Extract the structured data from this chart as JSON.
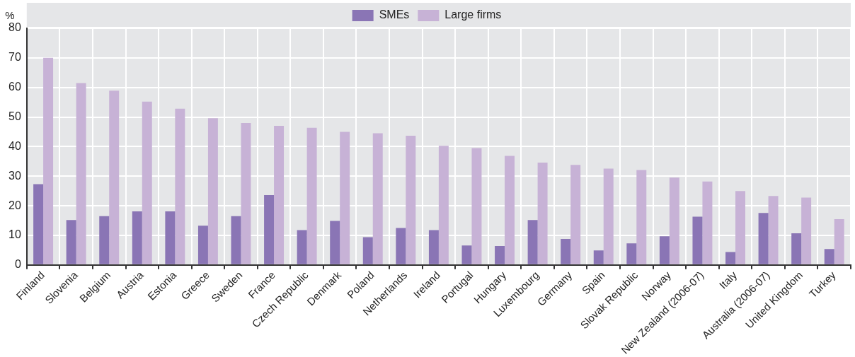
{
  "chart_data": {
    "type": "bar",
    "ylabel": "%",
    "categories": [
      "Finland",
      "Slovenia",
      "Belgium",
      "Austria",
      "Estonia",
      "Greece",
      "Sweden",
      "France",
      "Czech Republic",
      "Denmark",
      "Poland",
      "Netherlands",
      "Ireland",
      "Portugal",
      "Hungary",
      "Luxembourg",
      "Germany",
      "Spain",
      "Slovak Republic",
      "Norway",
      "New Zealand (2006-07)",
      "Italy",
      "Australia (2006-07)",
      "United Kingdom",
      "Turkey"
    ],
    "series": [
      {
        "name": "SMEs",
        "color": "#8a75b5",
        "values": [
          27.3,
          15.2,
          16.5,
          18.1,
          18.1,
          13.3,
          16.5,
          23.6,
          11.8,
          14.9,
          9.4,
          12.5,
          11.8,
          6.6,
          6.4,
          15.2,
          8.8,
          4.9,
          7.3,
          9.7,
          16.3,
          4.4,
          17.6,
          10.7,
          5.4
        ]
      },
      {
        "name": "Large firms",
        "color": "#c7b2d6",
        "values": [
          70,
          61.5,
          58.9,
          55.2,
          52.8,
          49.6,
          48.0,
          47.0,
          46.4,
          45.0,
          44.5,
          43.7,
          40.3,
          39.5,
          36.9,
          34.6,
          33.8,
          32.6,
          32.1,
          29.5,
          28.2,
          25.0,
          23.3,
          22.8,
          15.5
        ]
      }
    ],
    "ylim": [
      0,
      80
    ],
    "yticks": [
      0,
      10,
      20,
      30,
      40,
      50,
      60,
      70,
      80
    ],
    "grid": true,
    "legend": "top"
  }
}
